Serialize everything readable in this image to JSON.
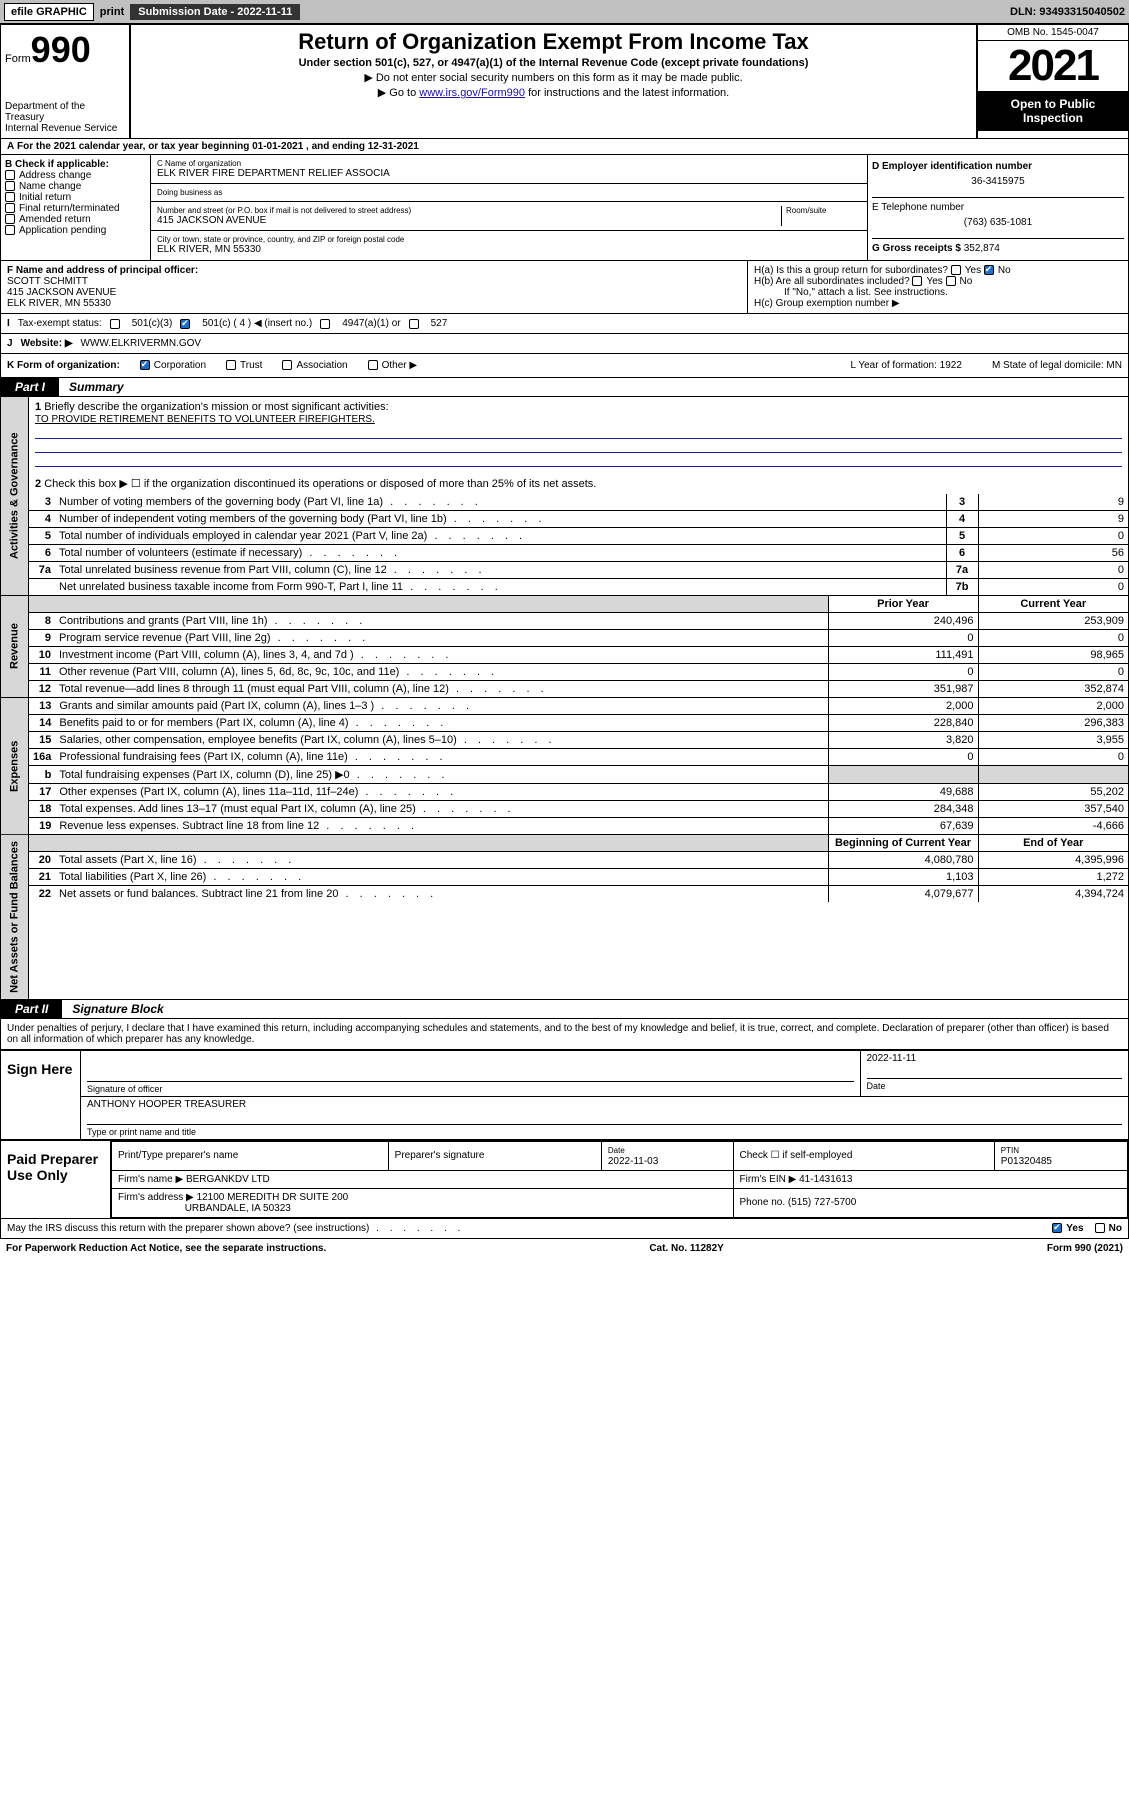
{
  "topbar": {
    "efile": "efile GRAPHIC",
    "print": "print",
    "submission_label": "Submission Date - 2022-11-11",
    "dln": "DLN: 93493315040502"
  },
  "header": {
    "form_word": "Form",
    "form_number": "990",
    "dept": "Department of the Treasury",
    "irs": "Internal Revenue Service",
    "title": "Return of Organization Exempt From Income Tax",
    "subtitle": "Under section 501(c), 527, or 4947(a)(1) of the Internal Revenue Code (except private foundations)",
    "note1": "▶ Do not enter social security numbers on this form as it may be made public.",
    "note2_pre": "▶ Go to ",
    "note2_link": "www.irs.gov/Form990",
    "note2_post": " for instructions and the latest information.",
    "omb": "OMB No. 1545-0047",
    "year": "2021",
    "open": "Open to Public Inspection"
  },
  "line_a": "For the 2021 calendar year, or tax year beginning 01-01-2021   , and ending 12-31-2021",
  "section_b": {
    "label": "B Check if applicable:",
    "opts": [
      "Address change",
      "Name change",
      "Initial return",
      "Final return/terminated",
      "Amended return",
      "Application pending"
    ]
  },
  "section_c": {
    "name_label": "C Name of organization",
    "name": "ELK RIVER FIRE DEPARTMENT RELIEF ASSOCIA",
    "dba_label": "Doing business as",
    "dba": "",
    "addr_label": "Number and street (or P.O. box if mail is not delivered to street address)",
    "room_label": "Room/suite",
    "addr": "415 JACKSON AVENUE",
    "city_label": "City or town, state or province, country, and ZIP or foreign postal code",
    "city": "ELK RIVER, MN  55330"
  },
  "section_d": {
    "ein_label": "D Employer identification number",
    "ein": "36-3415975",
    "phone_label": "E Telephone number",
    "phone": "(763) 635-1081",
    "gross_label": "G Gross receipts $",
    "gross": "352,874"
  },
  "section_f": {
    "label": "F Name and address of principal officer:",
    "name": "SCOTT SCHMITT",
    "addr1": "415 JACKSON AVENUE",
    "addr2": "ELK RIVER, MN  55330"
  },
  "section_h": {
    "ha": "H(a)  Is this a group return for subordinates?",
    "hb": "H(b)  Are all subordinates included?",
    "hb_note": "If \"No,\" attach a list. See instructions.",
    "hc": "H(c)  Group exemption number ▶",
    "yes": "Yes",
    "no": "No"
  },
  "section_i": {
    "label": "Tax-exempt status:",
    "o1": "501(c)(3)",
    "o2": "501(c) ( 4 ) ◀ (insert no.)",
    "o3": "4947(a)(1) or",
    "o4": "527"
  },
  "section_j": {
    "label": "Website: ▶",
    "val": "WWW.ELKRIVERMN.GOV"
  },
  "section_k": {
    "label": "K Form of organization:",
    "o1": "Corporation",
    "o2": "Trust",
    "o3": "Association",
    "o4": "Other ▶",
    "l": "L Year of formation: 1922",
    "m": "M State of legal domicile: MN"
  },
  "part1": {
    "tab": "Part I",
    "title": "Summary"
  },
  "mission": {
    "label": "Briefly describe the organization's mission or most significant activities:",
    "text": "TO PROVIDE RETIREMENT BENEFITS TO VOLUNTEER FIREFIGHTERS."
  },
  "line2": "Check this box ▶ ☐  if the organization discontinued its operations or disposed of more than 25% of its net assets.",
  "governance_rows": [
    {
      "n": "3",
      "t": "Number of voting members of the governing body (Part VI, line 1a)",
      "k": "3",
      "v": "9"
    },
    {
      "n": "4",
      "t": "Number of independent voting members of the governing body (Part VI, line 1b)",
      "k": "4",
      "v": "9"
    },
    {
      "n": "5",
      "t": "Total number of individuals employed in calendar year 2021 (Part V, line 2a)",
      "k": "5",
      "v": "0"
    },
    {
      "n": "6",
      "t": "Total number of volunteers (estimate if necessary)",
      "k": "6",
      "v": "56"
    },
    {
      "n": "7a",
      "t": "Total unrelated business revenue from Part VIII, column (C), line 12",
      "k": "7a",
      "v": "0"
    },
    {
      "n": "",
      "t": "Net unrelated business taxable income from Form 990-T, Part I, line 11",
      "k": "7b",
      "v": "0"
    }
  ],
  "two_col_header": {
    "prior": "Prior Year",
    "current": "Current Year"
  },
  "revenue_rows": [
    {
      "n": "8",
      "t": "Contributions and grants (Part VIII, line 1h)",
      "p": "240,496",
      "c": "253,909"
    },
    {
      "n": "9",
      "t": "Program service revenue (Part VIII, line 2g)",
      "p": "0",
      "c": "0"
    },
    {
      "n": "10",
      "t": "Investment income (Part VIII, column (A), lines 3, 4, and 7d )",
      "p": "111,491",
      "c": "98,965"
    },
    {
      "n": "11",
      "t": "Other revenue (Part VIII, column (A), lines 5, 6d, 8c, 9c, 10c, and 11e)",
      "p": "0",
      "c": "0"
    },
    {
      "n": "12",
      "t": "Total revenue—add lines 8 through 11 (must equal Part VIII, column (A), line 12)",
      "p": "351,987",
      "c": "352,874"
    }
  ],
  "expense_rows": [
    {
      "n": "13",
      "t": "Grants and similar amounts paid (Part IX, column (A), lines 1–3 )",
      "p": "2,000",
      "c": "2,000"
    },
    {
      "n": "14",
      "t": "Benefits paid to or for members (Part IX, column (A), line 4)",
      "p": "228,840",
      "c": "296,383"
    },
    {
      "n": "15",
      "t": "Salaries, other compensation, employee benefits (Part IX, column (A), lines 5–10)",
      "p": "3,820",
      "c": "3,955"
    },
    {
      "n": "16a",
      "t": "Professional fundraising fees (Part IX, column (A), line 11e)",
      "p": "0",
      "c": "0"
    },
    {
      "n": "b",
      "t": "Total fundraising expenses (Part IX, column (D), line 25) ▶0",
      "p": "",
      "c": "",
      "shade": true
    },
    {
      "n": "17",
      "t": "Other expenses (Part IX, column (A), lines 11a–11d, 11f–24e)",
      "p": "49,688",
      "c": "55,202"
    },
    {
      "n": "18",
      "t": "Total expenses. Add lines 13–17 (must equal Part IX, column (A), line 25)",
      "p": "284,348",
      "c": "357,540"
    },
    {
      "n": "19",
      "t": "Revenue less expenses. Subtract line 18 from line 12",
      "p": "67,639",
      "c": "-4,666"
    }
  ],
  "net_header": {
    "begin": "Beginning of Current Year",
    "end": "End of Year"
  },
  "net_rows": [
    {
      "n": "20",
      "t": "Total assets (Part X, line 16)",
      "p": "4,080,780",
      "c": "4,395,996"
    },
    {
      "n": "21",
      "t": "Total liabilities (Part X, line 26)",
      "p": "1,103",
      "c": "1,272"
    },
    {
      "n": "22",
      "t": "Net assets or fund balances. Subtract line 21 from line 20",
      "p": "4,079,677",
      "c": "4,394,724"
    }
  ],
  "part2": {
    "tab": "Part II",
    "title": "Signature Block"
  },
  "penalty": "Under penalties of perjury, I declare that I have examined this return, including accompanying schedules and statements, and to the best of my knowledge and belief, it is true, correct, and complete. Declaration of preparer (other than officer) is based on all information of which preparer has any knowledge.",
  "sign": {
    "label": "Sign Here",
    "sig_label": "Signature of officer",
    "date_label": "Date",
    "date": "2022-11-11",
    "name": "ANTHONY HOOPER  TREASURER",
    "name_label": "Type or print name and title"
  },
  "preparer": {
    "label": "Paid Preparer Use Only",
    "h1": "Print/Type preparer's name",
    "h2": "Preparer's signature",
    "h3": "Date",
    "h3v": "2022-11-03",
    "h4": "Check ☐ if self-employed",
    "h5": "PTIN",
    "h5v": "P01320485",
    "firm_name_label": "Firm's name    ▶",
    "firm_name": "BERGANKDV LTD",
    "firm_ein_label": "Firm's EIN ▶",
    "firm_ein": "41-1431613",
    "firm_addr_label": "Firm's address ▶",
    "firm_addr1": "12100 MEREDITH DR SUITE 200",
    "firm_addr2": "URBANDALE, IA  50323",
    "firm_phone_label": "Phone no.",
    "firm_phone": "(515) 727-5700"
  },
  "may_irs": "May the IRS discuss this return with the preparer shown above? (see instructions)",
  "footer": {
    "left": "For Paperwork Reduction Act Notice, see the separate instructions.",
    "mid": "Cat. No. 11282Y",
    "right": "Form 990 (2021)"
  },
  "vtabs": {
    "gov": "Activities & Governance",
    "rev": "Revenue",
    "exp": "Expenses",
    "net": "Net Assets or Fund Balances"
  }
}
